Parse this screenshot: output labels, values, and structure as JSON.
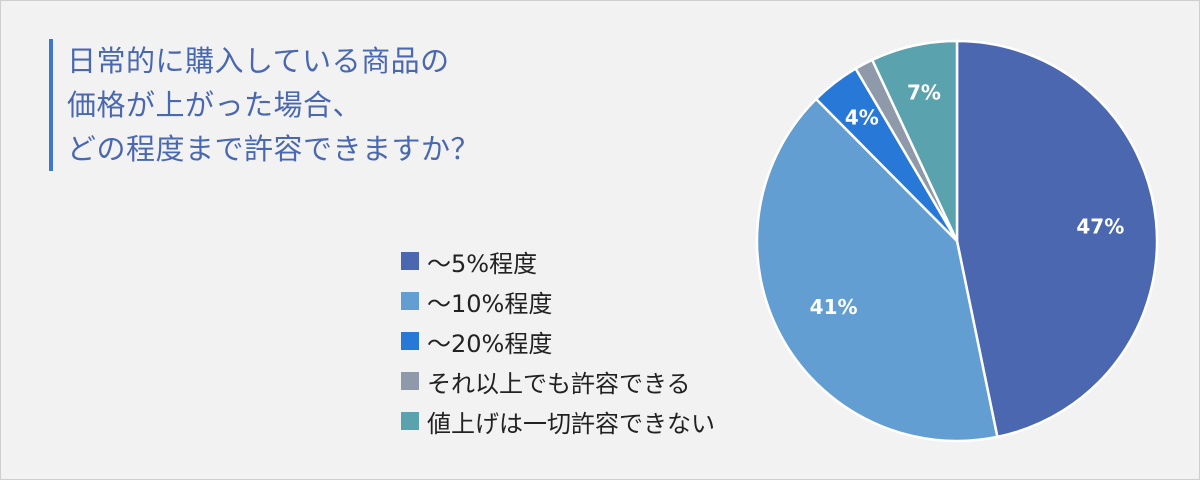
{
  "title_lines": [
    "日常的に購入している商品の",
    "価格が上がった場合、",
    "どの程度まで許容できますか？"
  ],
  "colors": {
    "accent_bar": "#3e78c8",
    "title_text": "#4a68b0",
    "background": "#f2f2f2"
  },
  "chart_data": {
    "type": "pie",
    "start_angle_deg": 0,
    "direction": "clockwise",
    "legend_position": "left",
    "slices": [
      {
        "label": "～5%程度",
        "value": 47,
        "display": "47%",
        "color": "#4b67b0"
      },
      {
        "label": "～10%程度",
        "value": 41,
        "display": "41%",
        "color": "#629ed2"
      },
      {
        "label": "～20%程度",
        "value": 4,
        "display": "4%",
        "color": "#2878d8"
      },
      {
        "label": "それ以上でも許容できる",
        "value": 1.5,
        "display": "",
        "color": "#8e9aaa"
      },
      {
        "label": "値上げは一切許容できない",
        "value": 7,
        "display": "7%",
        "color": "#5aa2ae"
      }
    ]
  }
}
